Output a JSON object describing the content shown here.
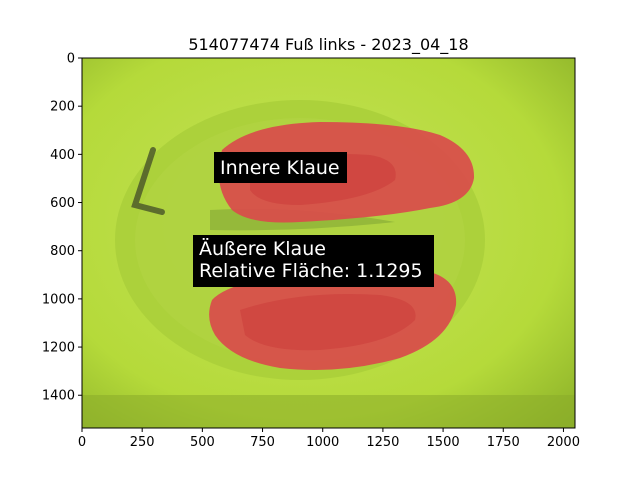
{
  "chart_data": {
    "type": "image",
    "title": "514077474 Fuß links - 2023_04_18",
    "xlim": [
      0,
      2048
    ],
    "ylim": [
      1536,
      0
    ],
    "x_ticks": [
      0,
      250,
      500,
      750,
      1000,
      1250,
      1500,
      1750,
      2000
    ],
    "y_ticks": [
      0,
      200,
      400,
      600,
      800,
      1000,
      1200,
      1400
    ],
    "annotations": [
      {
        "lines": [
          "Innere Klaue"
        ],
        "x": 560,
        "y": 460
      },
      {
        "lines": [
          "Äußere Klaue",
          "Relative Fläche: 1.1295"
        ],
        "x": 465,
        "y": 790
      }
    ],
    "regions": [
      {
        "name": "Innere Klaue",
        "color": "#d94b4b"
      },
      {
        "name": "Äußere Klaue",
        "color": "#d94b4b"
      }
    ],
    "background_color": "#b8dc3c",
    "mask_color": "#d94b4b",
    "grid": false
  }
}
